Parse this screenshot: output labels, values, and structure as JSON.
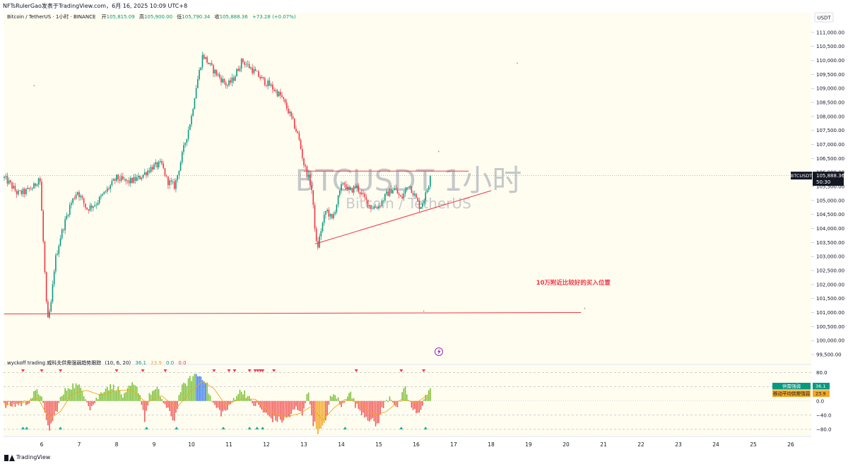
{
  "attribution": "NFTsRulerGao发表于TradingView.com，6月 16, 2025 10:09 UTC+8",
  "footer": {
    "brand": "TradingView"
  },
  "colors": {
    "up": "#089981",
    "down": "#f23645",
    "bg": "#fffdf0",
    "trend": "#f23645",
    "osc_up": "#7cc13a",
    "osc_down": "#f05c5c",
    "osc_blue": "#3d7cf0",
    "osc_orange": "#f5a623",
    "ma": "#f0a818"
  },
  "chart_data": [
    {
      "type": "candlestick",
      "title": "Bitcoin / TetherUS · 1小时 · BINANCE",
      "legend": {
        "open_label": "开",
        "open": "105,815.09",
        "high_label": "高",
        "high": "105,900.00",
        "low_label": "低",
        "low": "105,790.34",
        "close_label": "收",
        "close": "105,888.36",
        "change": "+73.28 (+0.07%)"
      },
      "watermark": {
        "symbol": "BTCUSDT 1小时",
        "name": "Bitcoin / TetherUS"
      },
      "currency": "USDT",
      "ylim": [
        99400,
        111400
      ],
      "y_ticks": [
        "111,000.00",
        "110,500.00",
        "110,000.00",
        "109,500.00",
        "109,000.00",
        "108,500.00",
        "108,000.00",
        "107,500.00",
        "107,000.00",
        "106,500.00",
        "106,000.00",
        "105,500.00",
        "105,000.00",
        "104,500.00",
        "104,000.00",
        "103,500.00",
        "103,000.00",
        "102,500.00",
        "102,000.00",
        "101,500.00",
        "101,000.00",
        "100,500.00",
        "100,000.00",
        "99,500.00"
      ],
      "y_tick_values": [
        111000,
        110500,
        110000,
        109500,
        109000,
        108500,
        108000,
        107500,
        107000,
        106500,
        106000,
        105500,
        105000,
        104500,
        104000,
        103500,
        103000,
        102500,
        102000,
        101500,
        101000,
        100500,
        100000,
        99500
      ],
      "x_labels": [
        "6",
        "7",
        "8",
        "9",
        "10",
        "11",
        "12",
        "13",
        "14",
        "15",
        "16",
        "17",
        "18",
        "19",
        "20",
        "21",
        "22",
        "23",
        "24",
        "25",
        "26"
      ],
      "x_label_days": [
        6,
        7,
        8,
        9,
        10,
        11,
        12,
        13,
        14,
        15,
        16,
        17,
        18,
        19,
        20,
        21,
        22,
        23,
        24,
        25,
        26
      ],
      "last_price": {
        "symbol": "BTCUSDT",
        "value": "105,888.36",
        "countdown": "50:30",
        "price": 105888.36
      },
      "price_path": [
        [
          5.0,
          105800
        ],
        [
          5.15,
          105600
        ],
        [
          5.35,
          105250
        ],
        [
          5.55,
          105300
        ],
        [
          5.8,
          105500
        ],
        [
          5.95,
          105900
        ],
        [
          6.05,
          103300
        ],
        [
          6.15,
          100600
        ],
        [
          6.25,
          101300
        ],
        [
          6.35,
          102800
        ],
        [
          6.5,
          103700
        ],
        [
          6.75,
          104800
        ],
        [
          6.95,
          105350
        ],
        [
          7.2,
          104700
        ],
        [
          7.45,
          104900
        ],
        [
          7.7,
          105300
        ],
        [
          8.0,
          105800
        ],
        [
          8.3,
          105650
        ],
        [
          8.6,
          105800
        ],
        [
          8.95,
          106200
        ],
        [
          9.2,
          106300
        ],
        [
          9.35,
          105700
        ],
        [
          9.55,
          105500
        ],
        [
          9.8,
          106900
        ],
        [
          10.0,
          108000
        ],
        [
          10.1,
          108900
        ],
        [
          10.3,
          110200
        ],
        [
          10.55,
          109700
        ],
        [
          10.75,
          109400
        ],
        [
          10.95,
          109100
        ],
        [
          11.1,
          109300
        ],
        [
          11.35,
          110000
        ],
        [
          11.6,
          109700
        ],
        [
          11.9,
          109300
        ],
        [
          12.1,
          109100
        ],
        [
          12.4,
          108700
        ],
        [
          12.65,
          108000
        ],
        [
          12.85,
          107300
        ],
        [
          13.0,
          106300
        ],
        [
          13.2,
          105500
        ],
        [
          13.35,
          103200
        ],
        [
          13.45,
          103900
        ],
        [
          13.6,
          104700
        ],
        [
          13.75,
          104300
        ],
        [
          13.9,
          105000
        ],
        [
          14.05,
          105700
        ],
        [
          14.2,
          105300
        ],
        [
          14.4,
          105500
        ],
        [
          14.6,
          105100
        ],
        [
          14.8,
          104750
        ],
        [
          15.0,
          104800
        ],
        [
          15.2,
          105200
        ],
        [
          15.4,
          105450
        ],
        [
          15.6,
          105050
        ],
        [
          15.8,
          105600
        ],
        [
          15.95,
          105200
        ],
        [
          16.1,
          104750
        ],
        [
          16.25,
          105200
        ],
        [
          16.4,
          105888
        ]
      ],
      "indicator": {
        "name": "wyckoff trading 威科夫供需强弱趋势跟踪",
        "params": "(10, 6, 20)",
        "values": [
          "36.1",
          "23.9",
          "0.0",
          "0.0"
        ],
        "badges": [
          {
            "label": "供需强弱",
            "value": "36.1"
          },
          {
            "label": "移动平均供需强弱",
            "value": "23.9"
          }
        ],
        "ylim": [
          -92,
          95
        ],
        "y_ticks": [
          "80.0",
          "0.0",
          "−40.0",
          "−80.0"
        ],
        "y_tick_values": [
          80,
          0,
          -40,
          -80
        ],
        "dashed_levels": [
          80,
          40,
          -40,
          -80
        ],
        "osc_path": [
          [
            5.0,
            -15
          ],
          [
            5.3,
            -10
          ],
          [
            5.6,
            -5
          ],
          [
            5.85,
            25
          ],
          [
            6.0,
            20
          ],
          [
            6.1,
            -55
          ],
          [
            6.2,
            -80
          ],
          [
            6.35,
            -40
          ],
          [
            6.5,
            5
          ],
          [
            6.7,
            40
          ],
          [
            6.9,
            45
          ],
          [
            7.1,
            30
          ],
          [
            7.3,
            -20
          ],
          [
            7.5,
            10
          ],
          [
            7.7,
            40
          ],
          [
            8.0,
            38
          ],
          [
            8.2,
            10
          ],
          [
            8.4,
            45
          ],
          [
            8.6,
            30
          ],
          [
            8.75,
            -50
          ],
          [
            8.9,
            25
          ],
          [
            9.1,
            30
          ],
          [
            9.35,
            -25
          ],
          [
            9.55,
            -55
          ],
          [
            9.7,
            30
          ],
          [
            9.9,
            55
          ],
          [
            10.1,
            75
          ],
          [
            10.35,
            65
          ],
          [
            10.55,
            -5
          ],
          [
            10.8,
            -35
          ],
          [
            11.0,
            -20
          ],
          [
            11.2,
            20
          ],
          [
            11.4,
            30
          ],
          [
            11.6,
            -5
          ],
          [
            11.8,
            -15
          ],
          [
            11.95,
            -35
          ],
          [
            12.15,
            -50
          ],
          [
            12.4,
            -55
          ],
          [
            12.6,
            -45
          ],
          [
            12.8,
            -20
          ],
          [
            12.95,
            -40
          ],
          [
            13.1,
            30
          ],
          [
            13.25,
            -60
          ],
          [
            13.4,
            -88
          ],
          [
            13.55,
            -70
          ],
          [
            13.7,
            5
          ],
          [
            13.85,
            20
          ],
          [
            14.0,
            -20
          ],
          [
            14.2,
            30
          ],
          [
            14.4,
            -15
          ],
          [
            14.6,
            -35
          ],
          [
            14.8,
            -55
          ],
          [
            14.95,
            -70
          ],
          [
            15.1,
            -20
          ],
          [
            15.3,
            15
          ],
          [
            15.5,
            -20
          ],
          [
            15.7,
            35
          ],
          [
            15.9,
            -25
          ],
          [
            16.05,
            -40
          ],
          [
            16.2,
            5
          ],
          [
            16.4,
            36
          ]
        ],
        "ma_path": [
          [
            5.0,
            -10
          ],
          [
            5.5,
            -5
          ],
          [
            5.9,
            8
          ],
          [
            6.2,
            -50
          ],
          [
            6.5,
            -30
          ],
          [
            6.8,
            20
          ],
          [
            7.2,
            30
          ],
          [
            7.6,
            15
          ],
          [
            8.0,
            30
          ],
          [
            8.4,
            30
          ],
          [
            8.8,
            -5
          ],
          [
            9.2,
            15
          ],
          [
            9.6,
            -20
          ],
          [
            10.0,
            30
          ],
          [
            10.3,
            55
          ],
          [
            10.6,
            35
          ],
          [
            10.9,
            -10
          ],
          [
            11.3,
            5
          ],
          [
            11.7,
            5
          ],
          [
            12.1,
            -30
          ],
          [
            12.5,
            -45
          ],
          [
            12.9,
            -35
          ],
          [
            13.2,
            -15
          ],
          [
            13.5,
            -55
          ],
          [
            13.8,
            -20
          ],
          [
            14.1,
            5
          ],
          [
            14.5,
            -5
          ],
          [
            14.9,
            -40
          ],
          [
            15.2,
            -30
          ],
          [
            15.6,
            5
          ],
          [
            16.0,
            -5
          ],
          [
            16.4,
            24
          ]
        ],
        "down_markers": [
          5.5,
          6.0,
          6.5,
          8.0,
          8.7,
          9.3,
          10.6,
          11.0,
          11.15,
          11.55,
          11.7,
          11.77,
          11.84,
          11.9,
          12.2,
          14.4,
          15.6,
          16.2
        ],
        "up_markers": [
          5.5,
          5.6,
          6.5,
          8.8,
          9.6,
          10.85,
          11.55,
          11.75,
          11.9,
          14.1,
          15.6,
          16.25
        ]
      }
    }
  ],
  "drawings": {
    "trendline_start": [
      13.3,
      103450
    ],
    "trendline_end": [
      18.0,
      105350
    ],
    "resistance_start": [
      13.0,
      106050
    ],
    "resistance_end": [
      17.4,
      106050
    ],
    "support_start": [
      5.0,
      100950
    ],
    "support_end": [
      20.4,
      101000
    ],
    "annotation": "10万附近比较好的买入位置",
    "annotation_at": [
      19.2,
      102000
    ],
    "marks": [
      [
        5.8,
        109100
      ],
      [
        18.7,
        109900
      ],
      [
        16.6,
        106750
      ],
      [
        20.5,
        101150
      ],
      [
        16.2,
        101050
      ]
    ]
  }
}
